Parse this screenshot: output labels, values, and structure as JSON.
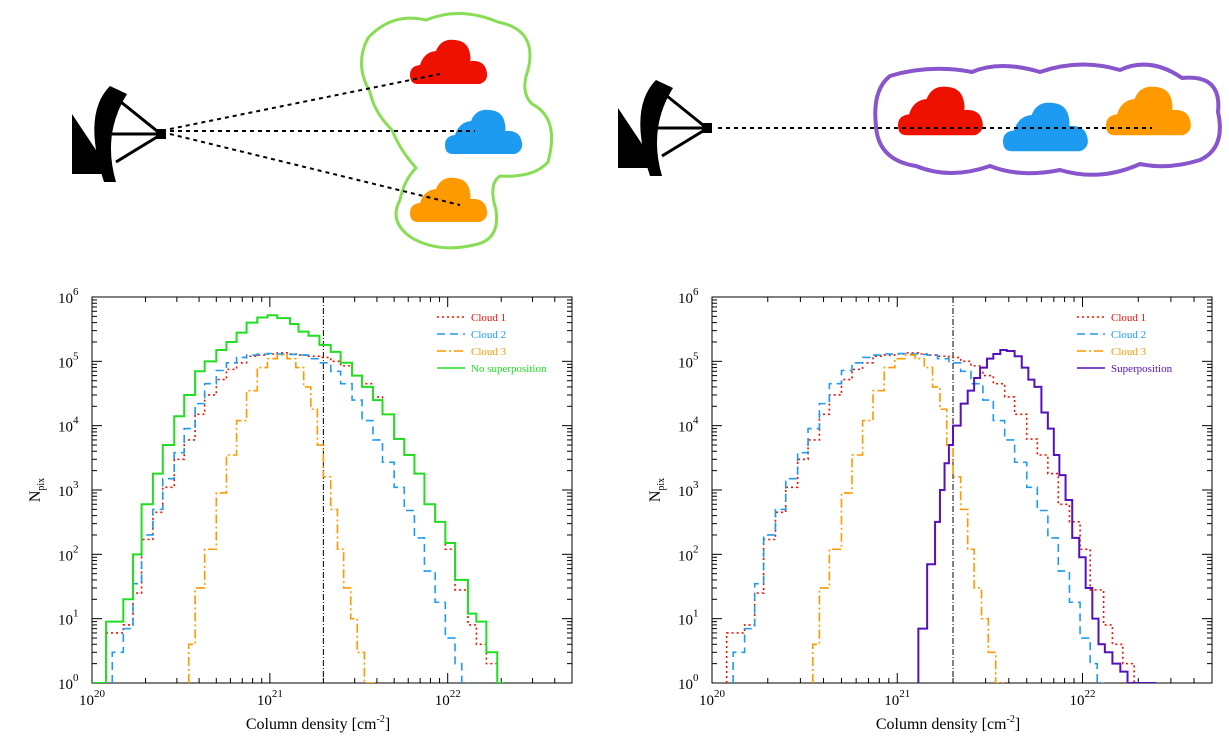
{
  "colors": {
    "cloud1": "#ee1100",
    "cloud2": "#1d9bf0",
    "cloud3": "#ff9900",
    "no_superposition": "#22dd22",
    "superposition": "#5511bb",
    "outline_left": "#88dd55",
    "outline_right": "#8855cc",
    "dish": "#000000"
  },
  "icons": [
    "radio-telescope-icon",
    "cloud-icon"
  ],
  "chart_data": [
    {
      "type": "line",
      "step": true,
      "x_scale": "log",
      "y_scale": "log",
      "xlim": [
        1e+20,
        5e+22
      ],
      "ylim": [
        1,
        1000000.0
      ],
      "xlabel_text": "Column density [cm",
      "xlabel_sup": "-2",
      "ylabel_text": "N",
      "ylabel_sub": "pix",
      "x_ticks": [
        {
          "base": "10",
          "exp": "20"
        },
        {
          "base": "10",
          "exp": "21"
        },
        {
          "base": "10",
          "exp": "22"
        }
      ],
      "y_ticks": [
        {
          "base": "10",
          "exp": "0"
        },
        {
          "base": "10",
          "exp": "1"
        },
        {
          "base": "10",
          "exp": "2"
        },
        {
          "base": "10",
          "exp": "3"
        },
        {
          "base": "10",
          "exp": "4"
        },
        {
          "base": "10",
          "exp": "5"
        },
        {
          "base": "10",
          "exp": "6"
        }
      ],
      "vline_x": 2e+21,
      "legend_position": "top-right",
      "series": [
        {
          "name": "Cloud 1",
          "color_key": "cloud1",
          "dash": "2,3",
          "x": [
            1.2e+20,
            1.5e+20,
            1.7e+20,
            1.9e+20,
            2.2e+20,
            2.5e+20,
            2.9e+20,
            3.3e+20,
            3.8e+20,
            4.3e+20,
            5e+20,
            5.7e+20,
            6.5e+20,
            7.4e+20,
            8.5e+20,
            9.7e+20,
            1.1e+21,
            1.3e+21,
            1.45e+21,
            1.65e+21,
            1.9e+21,
            2.2e+21,
            2.5e+21,
            2.9e+21,
            3.3e+21,
            3.8e+21,
            4.3e+21,
            5e+21,
            5.7e+21,
            6.5e+21,
            7.4e+21,
            8.5e+21,
            9.7e+21,
            1.1e+22,
            1.3e+22,
            1.45e+22,
            1.65e+22,
            1.9e+22
          ],
          "y": [
            6,
            8,
            25,
            170,
            450,
            1100,
            3000,
            6000,
            15000,
            30000,
            52000,
            75000,
            95000,
            120000,
            125000,
            130000,
            135000,
            130000,
            125000,
            120000,
            115000,
            100000,
            85000,
            60000,
            45000,
            28000,
            15000,
            6200,
            3500,
            1800,
            600,
            320,
            120,
            28,
            8,
            4,
            2,
            1
          ]
        },
        {
          "name": "Cloud 2",
          "color_key": "cloud2",
          "dash": "8,5",
          "x": [
            1.3e+20,
            1.5e+20,
            1.7e+20,
            1.9e+20,
            2.2e+20,
            2.5e+20,
            2.9e+20,
            3.3e+20,
            3.8e+20,
            4.3e+20,
            5e+20,
            5.7e+20,
            6.5e+20,
            7.4e+20,
            8.5e+20,
            9.7e+20,
            1.1e+21,
            1.3e+21,
            1.45e+21,
            1.65e+21,
            1.9e+21,
            2.2e+21,
            2.5e+21,
            2.9e+21,
            3.3e+21,
            3.8e+21,
            4.3e+21,
            5e+21,
            5.7e+21,
            6.5e+21,
            7.4e+21,
            8.5e+21,
            9.7e+21,
            1.1e+22,
            1.2e+22
          ],
          "y": [
            3,
            7,
            35,
            200,
            500,
            1500,
            3800,
            9000,
            22000,
            45000,
            72000,
            95000,
            115000,
            125000,
            130000,
            132000,
            130000,
            128000,
            125000,
            110000,
            95000,
            70000,
            45000,
            25000,
            12000,
            6000,
            2700,
            1100,
            480,
            180,
            55,
            18,
            5,
            2,
            1
          ]
        },
        {
          "name": "Cloud 3",
          "color_key": "cloud3",
          "dash": "9,3,2,3",
          "x": [
            3.5e+20,
            3.8e+20,
            4.3e+20,
            5e+20,
            5.7e+20,
            6.5e+20,
            7.4e+20,
            8.5e+20,
            9.7e+20,
            1.1e+21,
            1.25e+21,
            1.4e+21,
            1.55e+21,
            1.7e+21,
            1.85e+21,
            2e+21,
            2.2e+21,
            2.4e+21,
            2.6e+21,
            2.85e+21,
            3.1e+21,
            3.4e+21,
            3.6e+21
          ],
          "y": [
            4,
            30,
            120,
            900,
            3500,
            12000,
            35000,
            80000,
            110000,
            125000,
            110000,
            80000,
            40000,
            18000,
            5000,
            1600,
            500,
            120,
            30,
            10,
            3,
            1,
            1
          ]
        },
        {
          "name": "No superposition",
          "color_key": "no_superposition",
          "dash": "",
          "x": [
            1e+20,
            1.2e+20,
            1.5e+20,
            1.7e+20,
            1.9e+20,
            2.2e+20,
            2.5e+20,
            2.9e+20,
            3.3e+20,
            3.8e+20,
            4.3e+20,
            5e+20,
            5.7e+20,
            6.5e+20,
            7.4e+20,
            8.5e+20,
            9.7e+20,
            1.1e+21,
            1.3e+21,
            1.45e+21,
            1.65e+21,
            1.9e+21,
            2.2e+21,
            2.5e+21,
            2.9e+21,
            3.3e+21,
            3.8e+21,
            4.3e+21,
            5e+21,
            5.7e+21,
            6.5e+21,
            7.4e+21,
            8.5e+21,
            9.7e+21,
            1.1e+22,
            1.3e+22,
            1.45e+22,
            1.65e+22,
            1.9e+22
          ],
          "y": [
            1,
            9,
            20,
            100,
            600,
            1800,
            5000,
            14000,
            30000,
            70000,
            100000,
            150000,
            200000,
            280000,
            400000,
            480000,
            520000,
            470000,
            380000,
            290000,
            250000,
            180000,
            140000,
            95000,
            60000,
            40000,
            25000,
            15000,
            6200,
            3500,
            1800,
            600,
            320,
            150,
            40,
            12,
            9,
            3,
            1
          ]
        }
      ]
    },
    {
      "type": "line",
      "step": true,
      "x_scale": "log",
      "y_scale": "log",
      "xlim": [
        1e+20,
        5e+22
      ],
      "ylim": [
        1,
        1000000.0
      ],
      "xlabel_text": "Column density [cm",
      "xlabel_sup": "-2",
      "ylabel_text": "N",
      "ylabel_sub": "pix",
      "x_ticks": [
        {
          "base": "10",
          "exp": "20"
        },
        {
          "base": "10",
          "exp": "21"
        },
        {
          "base": "10",
          "exp": "22"
        }
      ],
      "y_ticks": [
        {
          "base": "10",
          "exp": "0"
        },
        {
          "base": "10",
          "exp": "1"
        },
        {
          "base": "10",
          "exp": "2"
        },
        {
          "base": "10",
          "exp": "3"
        },
        {
          "base": "10",
          "exp": "4"
        },
        {
          "base": "10",
          "exp": "5"
        },
        {
          "base": "10",
          "exp": "6"
        }
      ],
      "vline_x": 2e+21,
      "legend_position": "top-right",
      "series": [
        {
          "name": "Cloud 1",
          "color_key": "cloud1",
          "dash": "2,3",
          "x": [
            1.2e+20,
            1.5e+20,
            1.7e+20,
            1.9e+20,
            2.2e+20,
            2.5e+20,
            2.9e+20,
            3.3e+20,
            3.8e+20,
            4.3e+20,
            5e+20,
            5.7e+20,
            6.5e+20,
            7.4e+20,
            8.5e+20,
            9.7e+20,
            1.1e+21,
            1.3e+21,
            1.45e+21,
            1.65e+21,
            1.9e+21,
            2.2e+21,
            2.5e+21,
            2.9e+21,
            3.3e+21,
            3.8e+21,
            4.3e+21,
            5e+21,
            5.7e+21,
            6.5e+21,
            7.4e+21,
            8.5e+21,
            9.7e+21,
            1.1e+22,
            1.3e+22,
            1.45e+22,
            1.65e+22,
            1.9e+22
          ],
          "y": [
            6,
            8,
            25,
            170,
            450,
            1100,
            3000,
            6000,
            15000,
            30000,
            52000,
            75000,
            95000,
            120000,
            125000,
            130000,
            135000,
            130000,
            125000,
            120000,
            115000,
            100000,
            85000,
            60000,
            45000,
            28000,
            15000,
            6200,
            3500,
            1800,
            600,
            320,
            120,
            28,
            8,
            4,
            2,
            1
          ]
        },
        {
          "name": "Cloud 2",
          "color_key": "cloud2",
          "dash": "8,5",
          "x": [
            1.3e+20,
            1.5e+20,
            1.7e+20,
            1.9e+20,
            2.2e+20,
            2.5e+20,
            2.9e+20,
            3.3e+20,
            3.8e+20,
            4.3e+20,
            5e+20,
            5.7e+20,
            6.5e+20,
            7.4e+20,
            8.5e+20,
            9.7e+20,
            1.1e+21,
            1.3e+21,
            1.45e+21,
            1.65e+21,
            1.9e+21,
            2.2e+21,
            2.5e+21,
            2.9e+21,
            3.3e+21,
            3.8e+21,
            4.3e+21,
            5e+21,
            5.7e+21,
            6.5e+21,
            7.4e+21,
            8.5e+21,
            9.7e+21,
            1.1e+22,
            1.2e+22
          ],
          "y": [
            3,
            7,
            35,
            200,
            500,
            1500,
            3800,
            9000,
            22000,
            45000,
            72000,
            95000,
            115000,
            125000,
            130000,
            132000,
            130000,
            128000,
            125000,
            110000,
            95000,
            70000,
            45000,
            25000,
            12000,
            6000,
            2700,
            1100,
            480,
            180,
            55,
            18,
            5,
            2,
            1
          ]
        },
        {
          "name": "Cloud 3",
          "color_key": "cloud3",
          "dash": "9,3,2,3",
          "x": [
            3.5e+20,
            3.8e+20,
            4.3e+20,
            5e+20,
            5.7e+20,
            6.5e+20,
            7.4e+20,
            8.5e+20,
            9.7e+20,
            1.1e+21,
            1.25e+21,
            1.4e+21,
            1.55e+21,
            1.7e+21,
            1.85e+21,
            2e+21,
            2.2e+21,
            2.4e+21,
            2.6e+21,
            2.85e+21,
            3.1e+21,
            3.4e+21,
            3.6e+21
          ],
          "y": [
            4,
            30,
            120,
            900,
            3500,
            12000,
            35000,
            80000,
            110000,
            125000,
            110000,
            80000,
            40000,
            18000,
            5000,
            1600,
            500,
            120,
            30,
            10,
            3,
            1,
            1
          ]
        },
        {
          "name": "Superposition",
          "color_key": "superposition",
          "dash": "",
          "x": [
            1.3e+21,
            1.45e+21,
            1.6e+21,
            1.7e+21,
            1.8e+21,
            1.9e+21,
            2e+21,
            2.2e+21,
            2.4e+21,
            2.6e+21,
            2.8e+21,
            3.05e+21,
            3.3e+21,
            3.6e+21,
            3.9e+21,
            4.3e+21,
            4.7e+21,
            5.1e+21,
            5.5e+21,
            6e+21,
            6.5e+21,
            7e+21,
            7.5e+21,
            8.1e+21,
            8.8e+21,
            9.6e+21,
            1.04e+22,
            1.13e+22,
            1.22e+22,
            1.32e+22,
            1.45e+22,
            1.6e+22,
            1.75e+22,
            1.9e+22,
            2.1e+22,
            2.3e+22
          ],
          "y": [
            7,
            70,
            320,
            1000,
            2600,
            5000,
            10000,
            22000,
            35000,
            55000,
            80000,
            110000,
            130000,
            150000,
            145000,
            120000,
            80000,
            52000,
            40000,
            16000,
            9000,
            3500,
            1700,
            700,
            180,
            90,
            30,
            10,
            4,
            3,
            2,
            1.5,
            1,
            1,
            1,
            1
          ]
        }
      ]
    }
  ]
}
